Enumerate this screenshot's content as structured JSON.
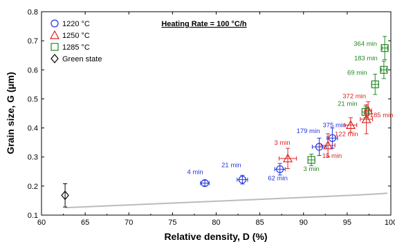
{
  "chart_data": {
    "type": "scatter",
    "xlabel": "Relative density, D (%)",
    "ylabel": "Grain size, G (µm)",
    "xlim": [
      60,
      100
    ],
    "ylim": [
      0.1,
      0.8
    ],
    "x_ticks": [
      "60",
      "65",
      "70",
      "75",
      "80",
      "85",
      "90",
      "95",
      "100"
    ],
    "y_ticks": [
      "0.1",
      "0.2",
      "0.3",
      "0.4",
      "0.5",
      "0.6",
      "0.7",
      "0.8"
    ],
    "header_annotation": "Heating Rate = 100 °C/h",
    "legend_position": "top-left",
    "grid": false,
    "series": [
      {
        "name": "1220 °C",
        "marker": "circle",
        "color": "#2233dd",
        "points": [
          {
            "x": 78.7,
            "y": 0.21,
            "xerr": 0.5,
            "yerr": 0.01,
            "label": "4 min"
          },
          {
            "x": 83.0,
            "y": 0.222,
            "xerr": 0.6,
            "yerr": 0.015,
            "label": "21 min"
          },
          {
            "x": 87.3,
            "y": 0.258,
            "xerr": 0.6,
            "yerr": 0.02,
            "label": "62 min"
          },
          {
            "x": 91.8,
            "y": 0.335,
            "xerr": 0.8,
            "yerr": 0.03,
            "label": "179 min"
          },
          {
            "x": 93.3,
            "y": 0.365,
            "xerr": 0.6,
            "yerr": 0.035,
            "label": "375 min"
          }
        ]
      },
      {
        "name": "1250 °C",
        "marker": "triangle",
        "color": "#dd2222",
        "points": [
          {
            "x": 88.2,
            "y": 0.295,
            "xerr": 1.0,
            "yerr": 0.035,
            "label": "3 min"
          },
          {
            "x": 92.8,
            "y": 0.34,
            "xerr": 0.8,
            "yerr": 0.04,
            "label": "15 min"
          },
          {
            "x": 95.4,
            "y": 0.41,
            "xerr": 0.7,
            "yerr": 0.025,
            "label": "122 min"
          },
          {
            "x": 97.2,
            "y": 0.43,
            "xerr": 0.7,
            "yerr": 0.05,
            "label": "185 min"
          },
          {
            "x": 97.4,
            "y": 0.46,
            "xerr": 0.4,
            "yerr": 0.03,
            "label": "372 min"
          }
        ]
      },
      {
        "name": "1285 °C",
        "marker": "square",
        "color": "#228822",
        "points": [
          {
            "x": 90.9,
            "y": 0.29,
            "xerr": 0.4,
            "yerr": 0.02,
            "label": "3 min"
          },
          {
            "x": 97.1,
            "y": 0.455,
            "xerr": 0.4,
            "yerr": 0.02,
            "label": "21 min"
          },
          {
            "x": 98.2,
            "y": 0.55,
            "xerr": 0.4,
            "yerr": 0.035,
            "label": "69 min"
          },
          {
            "x": 99.2,
            "y": 0.6,
            "xerr": 0.3,
            "yerr": 0.03,
            "label": "183 min"
          },
          {
            "x": 99.3,
            "y": 0.675,
            "xerr": 0.3,
            "yerr": 0.04,
            "label": "364 min"
          }
        ]
      },
      {
        "name": "Green state",
        "marker": "diamond",
        "color": "#000000",
        "points": [
          {
            "x": 62.7,
            "y": 0.168,
            "xerr": 0,
            "yerr": 0.04,
            "label": ""
          }
        ]
      }
    ],
    "fit_curve_color": "#bbbbbb"
  }
}
